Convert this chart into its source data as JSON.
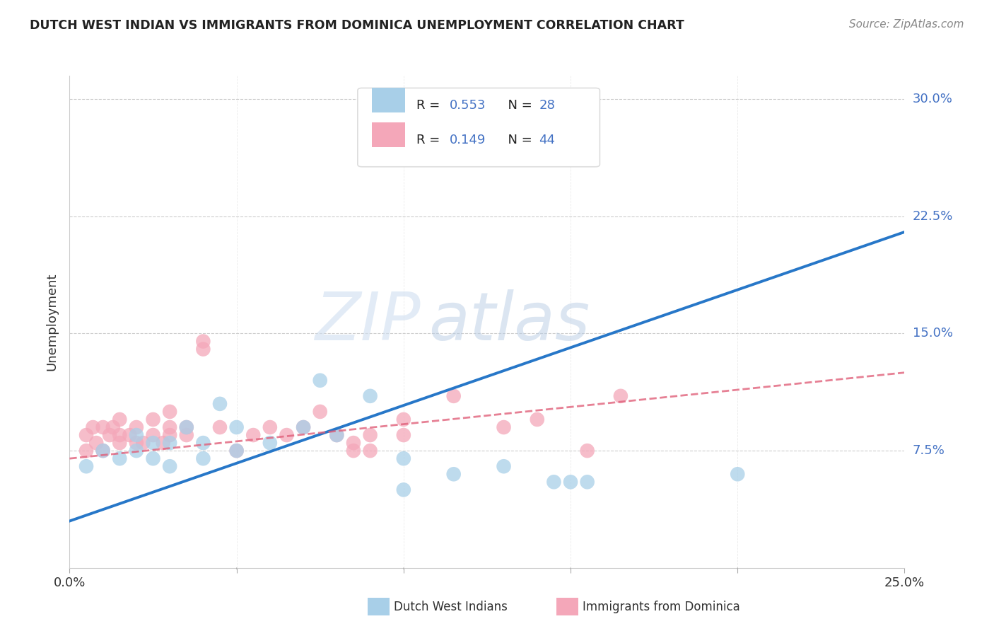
{
  "title": "DUTCH WEST INDIAN VS IMMIGRANTS FROM DOMINICA UNEMPLOYMENT CORRELATION CHART",
  "source": "Source: ZipAtlas.com",
  "ylabel": "Unemployment",
  "ytick_vals": [
    0.075,
    0.15,
    0.225,
    0.3
  ],
  "ytick_labels": [
    "7.5%",
    "15.0%",
    "22.5%",
    "30.0%"
  ],
  "xrange": [
    0.0,
    0.25
  ],
  "yrange": [
    0.0,
    0.315
  ],
  "blue_color": "#a8cfe8",
  "pink_color": "#f4a7b9",
  "blue_line_color": "#2777c8",
  "pink_line_color": "#e0607a",
  "blue_line_x": [
    0.0,
    0.25
  ],
  "blue_line_y": [
    0.03,
    0.215
  ],
  "pink_line_x": [
    0.0,
    0.25
  ],
  "pink_line_y": [
    0.07,
    0.125
  ],
  "watermark_zip": "ZIP",
  "watermark_atlas": "atlas",
  "blue_scatter_x": [
    0.005,
    0.01,
    0.015,
    0.02,
    0.02,
    0.025,
    0.025,
    0.03,
    0.03,
    0.035,
    0.04,
    0.04,
    0.045,
    0.05,
    0.05,
    0.06,
    0.07,
    0.075,
    0.08,
    0.09,
    0.1,
    0.1,
    0.115,
    0.13,
    0.145,
    0.15,
    0.155,
    0.2
  ],
  "blue_scatter_y": [
    0.065,
    0.075,
    0.07,
    0.075,
    0.085,
    0.07,
    0.08,
    0.065,
    0.08,
    0.09,
    0.07,
    0.08,
    0.105,
    0.075,
    0.09,
    0.08,
    0.09,
    0.12,
    0.085,
    0.11,
    0.07,
    0.05,
    0.06,
    0.065,
    0.055,
    0.055,
    0.055,
    0.06
  ],
  "pink_scatter_x": [
    0.005,
    0.005,
    0.007,
    0.008,
    0.01,
    0.01,
    0.012,
    0.013,
    0.015,
    0.015,
    0.015,
    0.018,
    0.02,
    0.02,
    0.022,
    0.025,
    0.025,
    0.028,
    0.03,
    0.03,
    0.03,
    0.035,
    0.035,
    0.04,
    0.04,
    0.045,
    0.05,
    0.055,
    0.06,
    0.065,
    0.07,
    0.075,
    0.08,
    0.085,
    0.085,
    0.09,
    0.09,
    0.1,
    0.1,
    0.115,
    0.13,
    0.14,
    0.155,
    0.165
  ],
  "pink_scatter_y": [
    0.075,
    0.085,
    0.09,
    0.08,
    0.075,
    0.09,
    0.085,
    0.09,
    0.085,
    0.08,
    0.095,
    0.085,
    0.08,
    0.09,
    0.08,
    0.085,
    0.095,
    0.08,
    0.085,
    0.09,
    0.1,
    0.085,
    0.09,
    0.14,
    0.145,
    0.09,
    0.075,
    0.085,
    0.09,
    0.085,
    0.09,
    0.1,
    0.085,
    0.08,
    0.075,
    0.075,
    0.085,
    0.085,
    0.095,
    0.11,
    0.09,
    0.095,
    0.075,
    0.11
  ]
}
